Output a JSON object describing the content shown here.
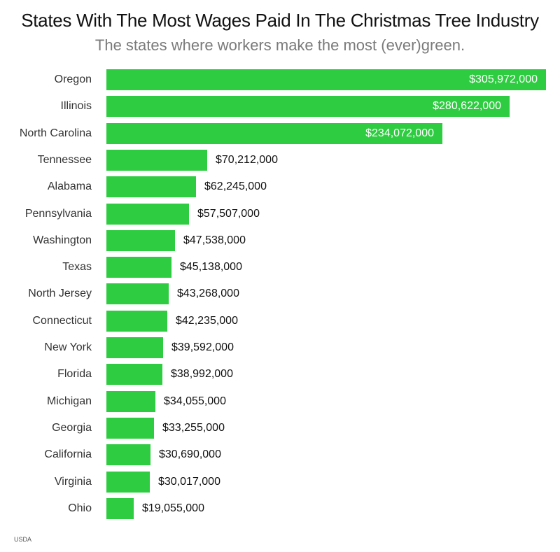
{
  "header": {
    "title": "States With The Most Wages Paid In The Christmas Tree Industry",
    "subtitle": "The states where workers make the most (ever)green."
  },
  "footer": {
    "source": "USDA"
  },
  "colors": {
    "bar": "#2ecc40",
    "title": "#111111",
    "subtitle": "#7a7a7a"
  },
  "chart_data": {
    "type": "bar",
    "orientation": "horizontal",
    "title": "States With The Most Wages Paid In The Christmas Tree Industry",
    "subtitle": "The states where workers make the most (ever)green.",
    "xlabel": "",
    "ylabel": "",
    "grid": false,
    "legend": null,
    "source": "USDA",
    "categories": [
      "Oregon",
      "Illinois",
      "North Carolina",
      "Tennessee",
      "Alabama",
      "Pennsylvania",
      "Washington",
      "Texas",
      "North Jersey",
      "Connecticut",
      "New York",
      "Florida",
      "Michigan",
      "Georgia",
      "California",
      "Virginia",
      "Ohio"
    ],
    "values": [
      305972000,
      280622000,
      234072000,
      70212000,
      62245000,
      57507000,
      47538000,
      45138000,
      43268000,
      42235000,
      39592000,
      38992000,
      34055000,
      33255000,
      30690000,
      30017000,
      19055000
    ],
    "value_labels": [
      "$305,972,000",
      "$280,622,000",
      "$234,072,000",
      "$70,212,000",
      "$62,245,000",
      "$57,507,000",
      "$47,538,000",
      "$45,138,000",
      "$43,268,000",
      "$42,235,000",
      "$39,592,000",
      "$38,992,000",
      "$34,055,000",
      "$33,255,000",
      "$30,690,000",
      "$30,017,000",
      "$19,055,000"
    ],
    "label_inside": [
      true,
      true,
      true,
      false,
      false,
      false,
      false,
      false,
      false,
      false,
      false,
      false,
      false,
      false,
      false,
      false,
      false
    ]
  }
}
